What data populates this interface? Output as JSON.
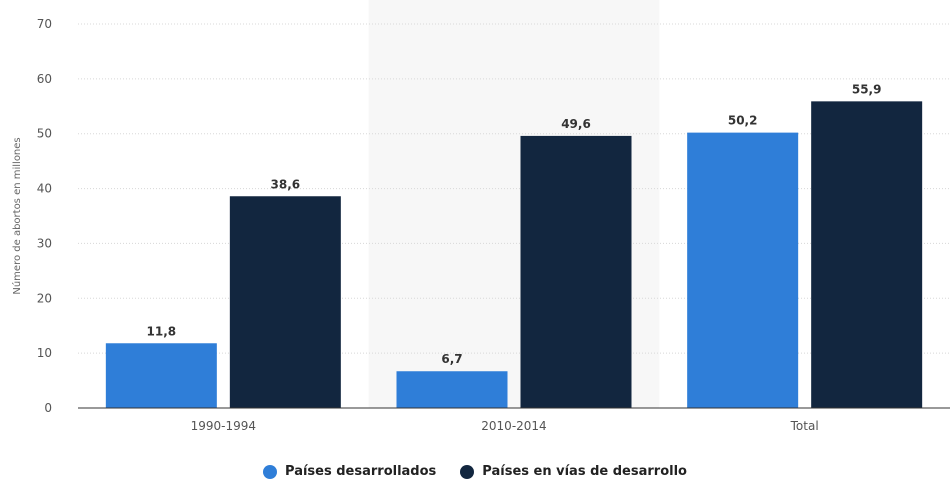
{
  "chart_data": {
    "type": "bar",
    "title": "",
    "xlabel": "",
    "ylabel": "Número de abortos en millones",
    "categories": [
      "1990-1994",
      "2010-2014",
      "Total"
    ],
    "series": [
      {
        "name": "Países desarrollados",
        "values": [
          11.8,
          6.7,
          50.2
        ],
        "color": "#2f7ed8"
      },
      {
        "name": "Países en vías de desarrollo",
        "values": [
          38.6,
          49.6,
          55.9
        ],
        "color": "#12263f"
      }
    ],
    "value_labels": [
      [
        "11,8",
        "6,7",
        "50,2"
      ],
      [
        "38,6",
        "49,6",
        "55,9"
      ]
    ],
    "ylim": [
      0,
      70
    ],
    "yticks": [
      0,
      10,
      20,
      30,
      40,
      50,
      60,
      70
    ],
    "grid": true,
    "legend_position": "bottom-center",
    "alternate_band_color": "#f7f7f7"
  }
}
